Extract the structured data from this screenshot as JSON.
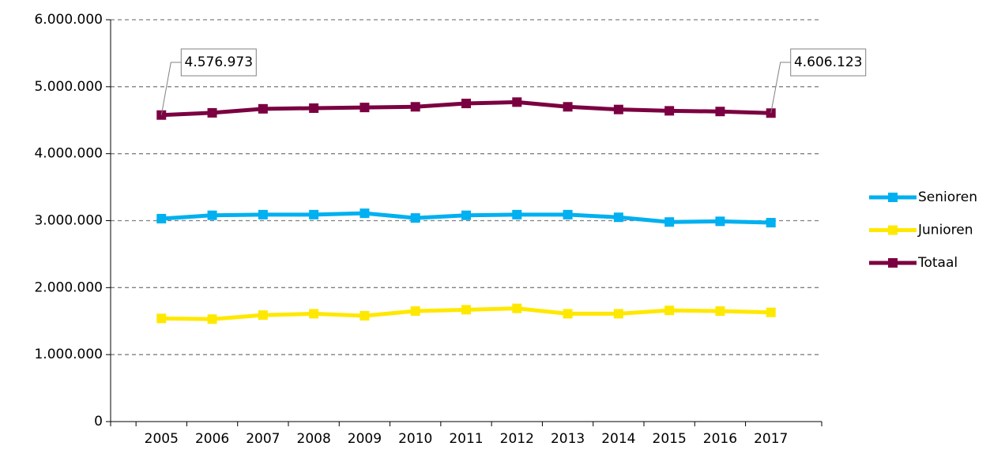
{
  "chart_data": {
    "type": "line",
    "categories": [
      "2005",
      "2006",
      "2007",
      "2008",
      "2009",
      "2010",
      "2011",
      "2012",
      "2013",
      "2014",
      "2015",
      "2016",
      "2017"
    ],
    "series": [
      {
        "name": "Senioren",
        "color": "#00b0f0",
        "values": [
          3030000,
          3080000,
          3090000,
          3090000,
          3110000,
          3040000,
          3080000,
          3090000,
          3090000,
          3050000,
          2980000,
          2990000,
          2970000
        ]
      },
      {
        "name": "Junioren",
        "color": "#ffe800",
        "values": [
          1540000,
          1530000,
          1590000,
          1610000,
          1580000,
          1650000,
          1670000,
          1690000,
          1610000,
          1610000,
          1660000,
          1650000,
          1630000
        ]
      },
      {
        "name": "Totaal",
        "color": "#7b0041",
        "values": [
          4576973,
          4610000,
          4670000,
          4680000,
          4690000,
          4700000,
          4750000,
          4770000,
          4700000,
          4660000,
          4640000,
          4630000,
          4606123
        ],
        "value_labels": [
          "4.576.973",
          null,
          null,
          null,
          null,
          null,
          null,
          null,
          null,
          null,
          null,
          null,
          "4.606.123"
        ]
      }
    ],
    "ylim": [
      0,
      6000000
    ],
    "yticks": [
      0,
      {
        "value": 1000000,
        "label": "1.000.000"
      },
      {
        "value": 2000000,
        "label": "2.000.000"
      },
      {
        "value": 3000000,
        "label": "3.000.000"
      },
      {
        "value": 4000000,
        "label": "4.000.000"
      },
      {
        "value": 5000000,
        "label": "5.000.000"
      },
      {
        "value": 6000000,
        "label": "6.000.000"
      }
    ],
    "grid": true,
    "legend": "right"
  }
}
